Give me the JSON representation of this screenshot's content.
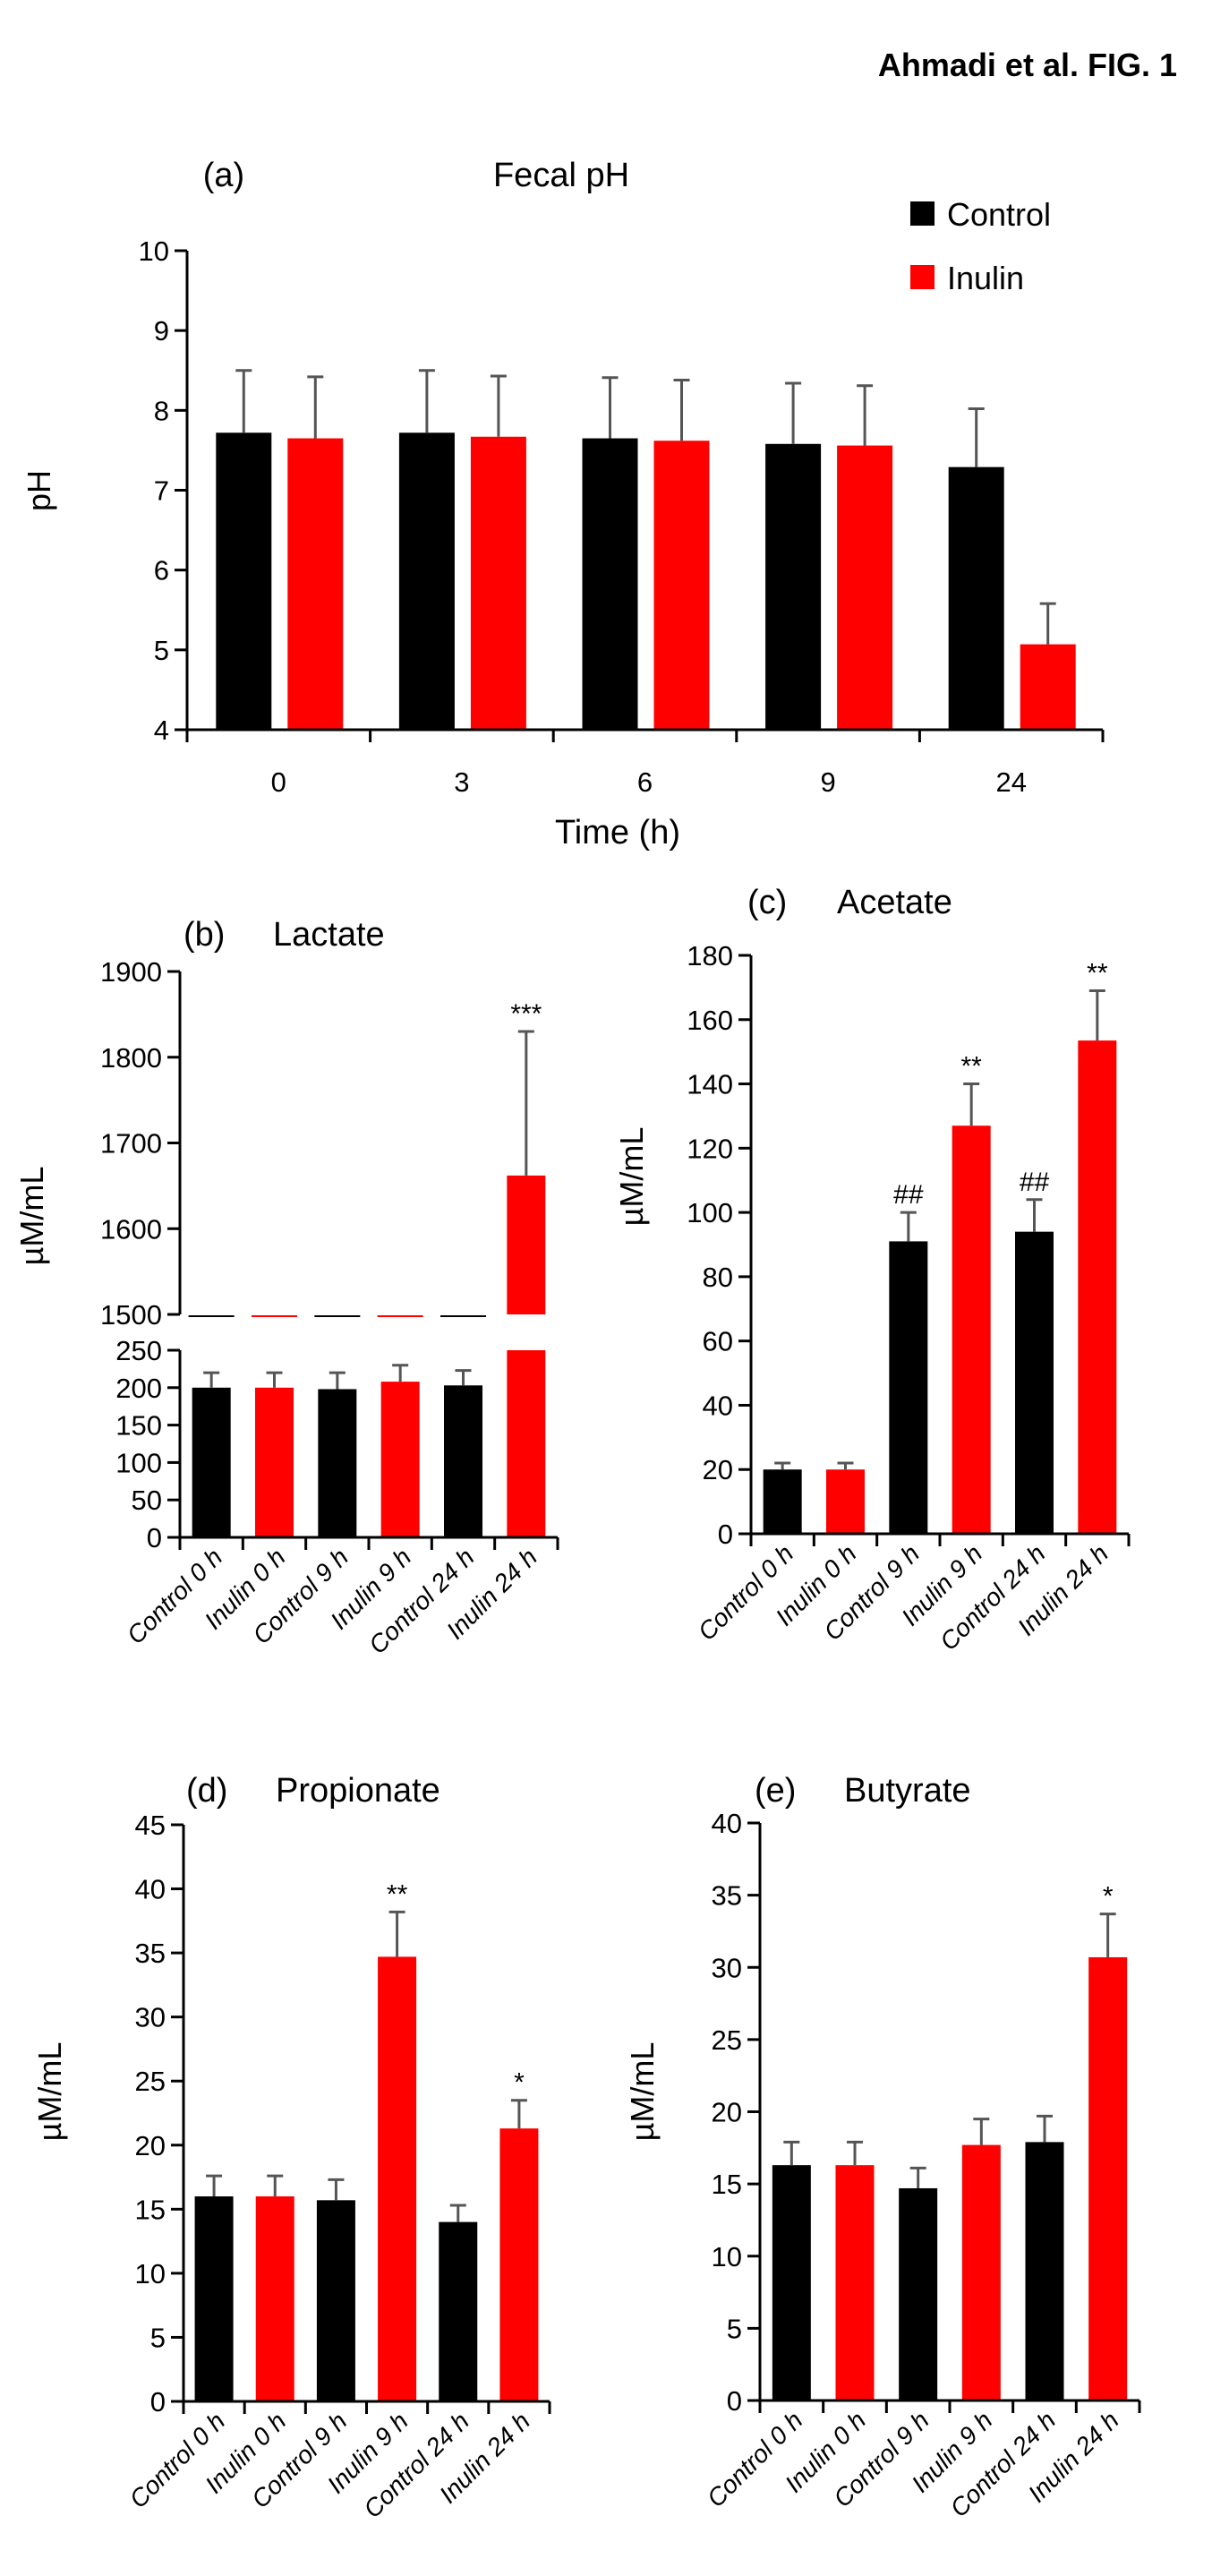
{
  "figure_label": "Ahmadi et al. FIG. 1",
  "colors": {
    "control": "#000000",
    "inulin": "#ff0000",
    "error_bar": "#555555"
  },
  "chart_data": [
    {
      "id": "a",
      "type": "bar",
      "panel_label": "(a)",
      "title": "Fecal pH",
      "xlabel": "Time (h)",
      "ylabel": "pH",
      "categories": [
        "0",
        "3",
        "6",
        "9",
        "24"
      ],
      "ylim": [
        4,
        10
      ],
      "yticks": [
        4,
        5,
        6,
        7,
        8,
        9,
        10
      ],
      "legend": {
        "position": "top-right",
        "entries": [
          "Control",
          "Inulin"
        ]
      },
      "series": [
        {
          "name": "Control",
          "values": [
            7.72,
            7.72,
            7.65,
            7.58,
            7.29
          ],
          "error_top": [
            8.5,
            8.5,
            8.41,
            8.34,
            8.02
          ]
        },
        {
          "name": "Inulin",
          "values": [
            7.65,
            7.67,
            7.62,
            7.56,
            5.07
          ],
          "error_top": [
            8.42,
            8.43,
            8.38,
            8.31,
            5.58
          ]
        }
      ]
    },
    {
      "id": "b",
      "type": "bar",
      "panel_label": "(b)",
      "title": "Lactate",
      "ylabel": "µM/mL",
      "categories": [
        "Control 0 h",
        "Inulin 0 h",
        "Control 9 h",
        "Inulin 9 h",
        "Control 24 h",
        "Inulin 24 h"
      ],
      "groups": [
        "Control",
        "Inulin",
        "Control",
        "Inulin",
        "Control",
        "Inulin"
      ],
      "broken_axis": true,
      "ylim_lower": [
        0,
        250
      ],
      "yticks_lower": [
        0,
        50,
        100,
        150,
        200,
        250
      ],
      "ylim_upper": [
        1500,
        1900
      ],
      "yticks_upper": [
        1500,
        1600,
        1700,
        1800,
        1900
      ],
      "values": [
        200,
        200,
        198,
        208,
        203,
        1662
      ],
      "error_top": [
        220,
        220,
        220,
        230,
        223,
        1830
      ],
      "annotations": [
        "",
        "",
        "",
        "",
        "",
        "***"
      ]
    },
    {
      "id": "c",
      "type": "bar",
      "panel_label": "(c)",
      "title": "Acetate",
      "ylabel": "µM/mL",
      "categories": [
        "Control 0 h",
        "Inulin 0 h",
        "Control 9 h",
        "Inulin 9 h",
        "Control 24 h",
        "Inulin 24 h"
      ],
      "groups": [
        "Control",
        "Inulin",
        "Control",
        "Inulin",
        "Control",
        "Inulin"
      ],
      "ylim": [
        0,
        180
      ],
      "yticks": [
        0,
        20,
        40,
        60,
        80,
        100,
        120,
        140,
        160,
        180
      ],
      "values": [
        20,
        20,
        91,
        127,
        94,
        153.5
      ],
      "error_top": [
        22,
        22,
        100,
        140,
        104,
        169
      ],
      "annotations": [
        "",
        "",
        "##",
        "**",
        "##",
        "**"
      ]
    },
    {
      "id": "d",
      "type": "bar",
      "panel_label": "(d)",
      "title": "Propionate",
      "ylabel": "µM/mL",
      "categories": [
        "Control 0 h",
        "Inulin 0 h",
        "Control 9 h",
        "Inulin 9 h",
        "Control 24 h",
        "Inulin 24 h"
      ],
      "groups": [
        "Control",
        "Inulin",
        "Control",
        "Inulin",
        "Control",
        "Inulin"
      ],
      "ylim": [
        0,
        45
      ],
      "yticks": [
        0,
        5,
        10,
        15,
        20,
        25,
        30,
        35,
        40,
        45
      ],
      "values": [
        16,
        16,
        15.7,
        34.7,
        14,
        21.3
      ],
      "error_top": [
        17.6,
        17.6,
        17.3,
        38.2,
        15.3,
        23.5
      ],
      "annotations": [
        "",
        "",
        "",
        "**",
        "",
        "*"
      ]
    },
    {
      "id": "e",
      "type": "bar",
      "panel_label": "(e)",
      "title": "Butyrate",
      "ylabel": "µM/mL",
      "categories": [
        "Control 0 h",
        "Inulin 0 h",
        "Control 9 h",
        "Inulin 9 h",
        "Control 24 h",
        "Inulin 24 h"
      ],
      "groups": [
        "Control",
        "Inulin",
        "Control",
        "Inulin",
        "Control",
        "Inulin"
      ],
      "ylim": [
        0,
        40
      ],
      "yticks": [
        0,
        5,
        10,
        15,
        20,
        25,
        30,
        35,
        40
      ],
      "values": [
        16.3,
        16.3,
        14.7,
        17.7,
        17.9,
        30.7
      ],
      "error_top": [
        17.9,
        17.9,
        16.1,
        19.5,
        19.7,
        33.7
      ],
      "annotations": [
        "",
        "",
        "",
        "",
        "",
        "*"
      ]
    }
  ]
}
